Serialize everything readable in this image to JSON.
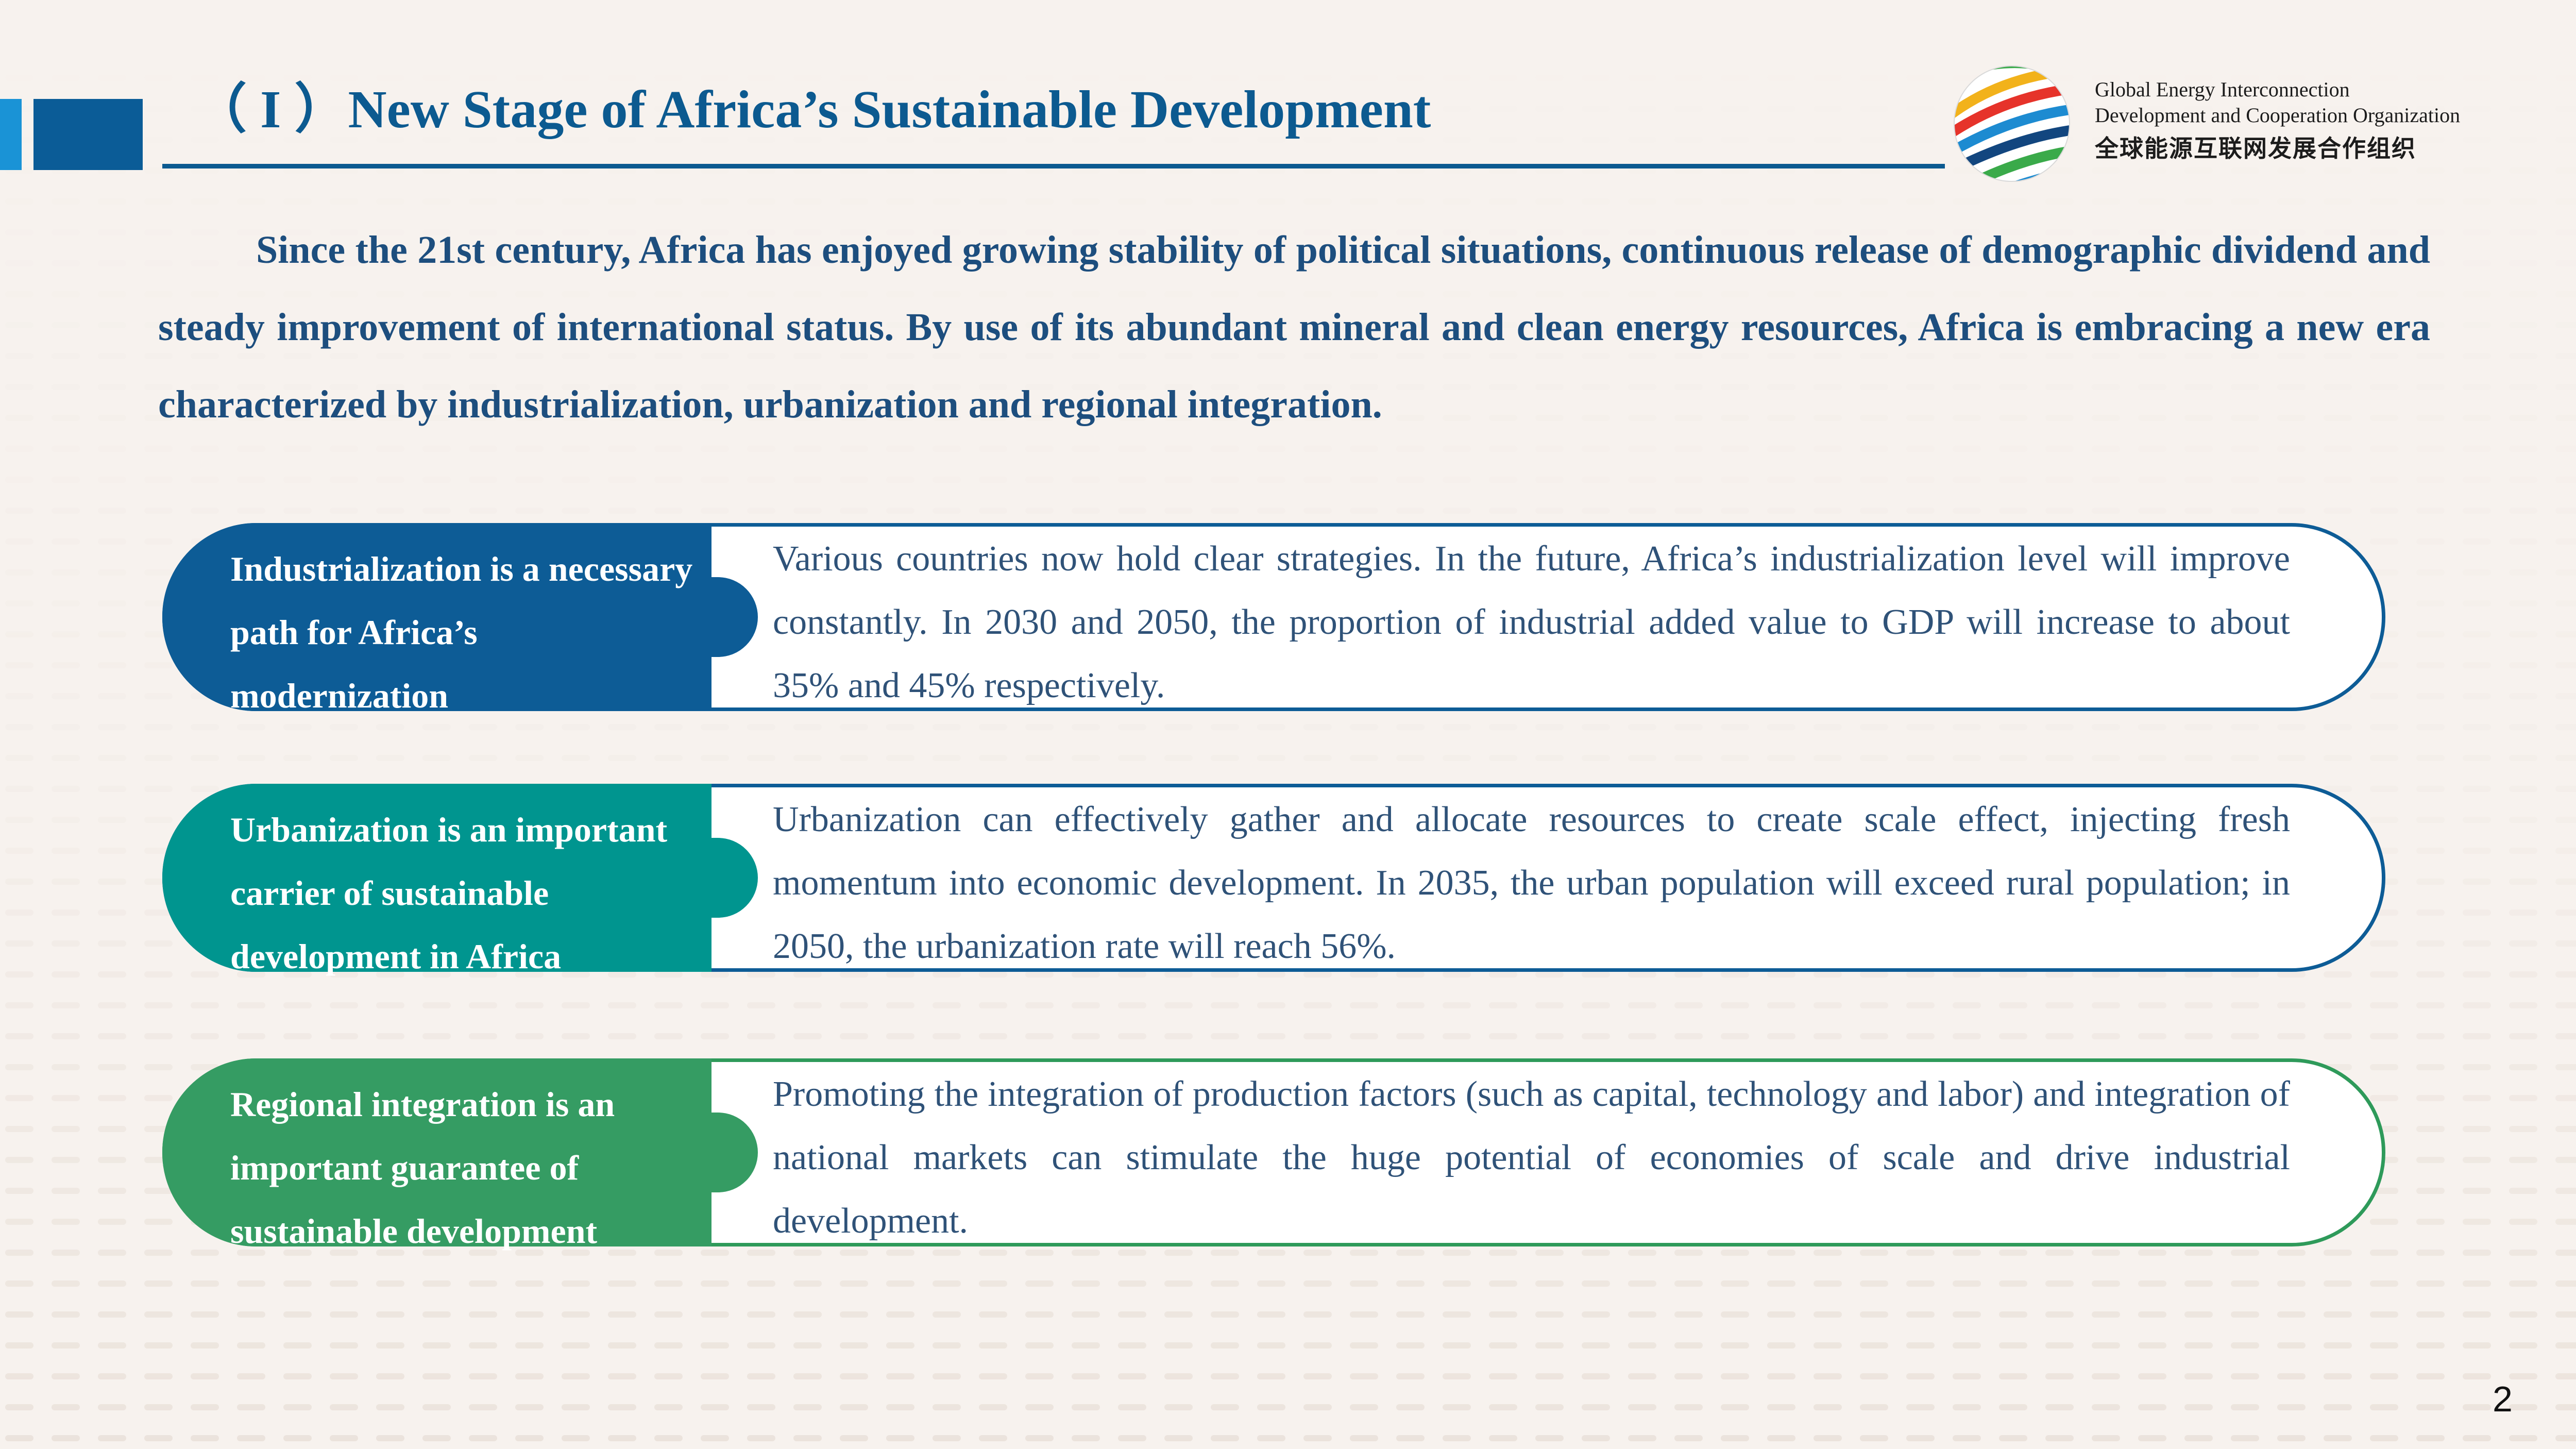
{
  "header": {
    "title": "（ I ）New Stage of Africa’s Sustainable Development",
    "org_en_line1": "Global Energy Interconnection",
    "org_en_line2": "Development and Cooperation Organization",
    "org_cn": "全球能源互联网发展合作组织",
    "logo_icon": "globe-logo-icon"
  },
  "intro": "Since the 21st century, Africa has enjoyed growing stability of political situations, continuous release of demographic dividend and steady improvement of international status. By use of its abundant mineral and clean energy resources, Africa is embracing a new era characterized by industrialization, urbanization and regional integration.",
  "cards": [
    {
      "label": "Industrialization is a necessary path for Africa’s modernization",
      "body": "Various countries now hold clear strategies. In the future, Africa’s industrialization level will improve constantly. In 2030 and 2050, the proportion of industrial added value to GDP will increase to about 35% and 45% respectively."
    },
    {
      "label": "Urbanization is an important carrier of sustainable development in Africa",
      "body": "Urbanization can effectively gather and allocate resources to create scale effect,  injecting fresh momentum into economic development. In 2035, the urban population will exceed rural population; in 2050, the urbanization rate will reach 56%."
    },
    {
      "label": "Regional integration is an important guarantee of sustainable development",
      "body": "Promoting the integration of production factors (such as capital, technology and labor) and integration of national markets can stimulate the huge potential of economies of scale and drive industrial development."
    }
  ],
  "page_number": "2",
  "colors": {
    "title": "#0c5a90",
    "card_1": "#0d5c96",
    "card_2": "#00958f",
    "card_3": "#359c63"
  }
}
